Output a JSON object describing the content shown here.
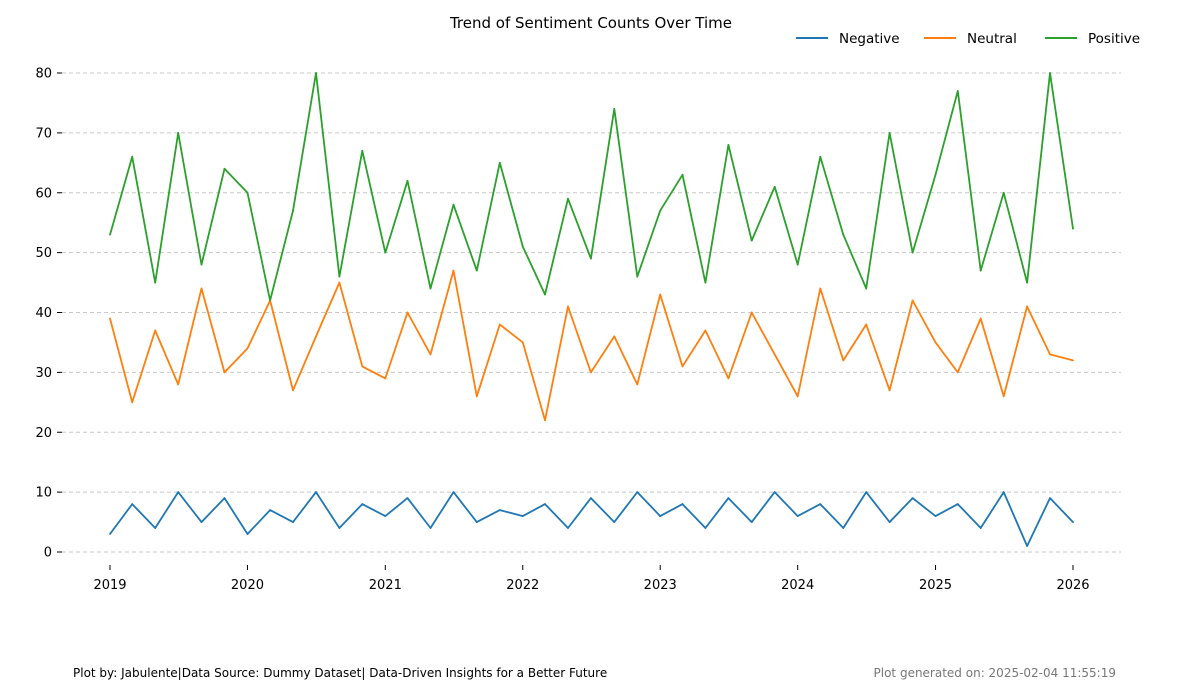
{
  "chart_data": {
    "type": "line",
    "title": "Trend of Sentiment Counts Over Time",
    "xlabel": "",
    "ylabel": "",
    "x_range": [
      "2019-01-01",
      "2026-01-01"
    ],
    "xticks": [
      "2019",
      "2020",
      "2021",
      "2022",
      "2023",
      "2024",
      "2025",
      "2026"
    ],
    "ylim": [
      0,
      80
    ],
    "yticks": [
      0,
      10,
      20,
      30,
      40,
      50,
      60,
      70,
      80
    ],
    "grid": "horizontal-dashed",
    "legend_position": "top-right",
    "series": [
      {
        "name": "Negative",
        "color": "#1f77b4",
        "x": [
          "2019-01-01",
          "2019-03-01",
          "2019-05-01",
          "2019-07-01",
          "2019-09-01",
          "2019-11-01",
          "2020-01-01",
          "2020-03-01",
          "2020-05-01",
          "2020-07-01",
          "2020-09-01",
          "2020-11-01",
          "2021-01-01",
          "2021-03-01",
          "2021-05-01",
          "2021-07-01",
          "2021-09-01",
          "2021-11-01",
          "2022-01-01",
          "2022-03-01",
          "2022-05-01",
          "2022-07-01",
          "2022-09-01",
          "2022-11-01",
          "2023-01-01",
          "2023-03-01",
          "2023-05-01",
          "2023-07-01",
          "2023-09-01",
          "2023-11-01",
          "2024-01-01",
          "2024-03-01",
          "2024-05-01",
          "2024-07-01",
          "2024-09-01",
          "2024-11-01",
          "2025-01-01",
          "2025-03-01",
          "2025-05-01",
          "2025-07-01",
          "2025-09-01",
          "2025-11-01",
          "2026-01-01"
        ],
        "values": [
          3,
          8,
          4,
          10,
          5,
          9,
          3,
          7,
          5,
          10,
          4,
          8,
          6,
          9,
          4,
          10,
          5,
          7,
          6,
          8,
          4,
          9,
          5,
          10,
          6,
          8,
          4,
          9,
          5,
          10,
          6,
          8,
          4,
          10,
          5,
          9,
          6,
          8,
          4,
          10,
          1,
          9,
          5
        ]
      },
      {
        "name": "Neutral",
        "color": "#ff7f0e",
        "x": [
          "2019-01-01",
          "2019-03-01",
          "2019-05-01",
          "2019-07-01",
          "2019-09-01",
          "2019-11-01",
          "2020-01-01",
          "2020-03-01",
          "2020-05-01",
          "2020-07-01",
          "2020-09-01",
          "2020-11-01",
          "2021-01-01",
          "2021-03-01",
          "2021-05-01",
          "2021-07-01",
          "2021-09-01",
          "2021-11-01",
          "2022-01-01",
          "2022-03-01",
          "2022-05-01",
          "2022-07-01",
          "2022-09-01",
          "2022-11-01",
          "2023-01-01",
          "2023-03-01",
          "2023-05-01",
          "2023-07-01",
          "2023-09-01",
          "2023-11-01",
          "2024-01-01",
          "2024-03-01",
          "2024-05-01",
          "2024-07-01",
          "2024-09-01",
          "2024-11-01",
          "2025-01-01",
          "2025-03-01",
          "2025-05-01",
          "2025-07-01",
          "2025-09-01",
          "2025-11-01",
          "2026-01-01"
        ],
        "values": [
          39,
          25,
          37,
          28,
          44,
          30,
          34,
          42,
          27,
          36,
          45,
          31,
          29,
          40,
          33,
          47,
          26,
          38,
          35,
          22,
          41,
          30,
          36,
          28,
          43,
          31,
          37,
          29,
          40,
          33,
          26,
          44,
          32,
          38,
          27,
          42,
          35,
          30,
          39,
          26,
          41,
          33,
          32
        ]
      },
      {
        "name": "Positive",
        "color": "#2ca02c",
        "x": [
          "2019-01-01",
          "2019-03-01",
          "2019-05-01",
          "2019-07-01",
          "2019-09-01",
          "2019-11-01",
          "2020-01-01",
          "2020-03-01",
          "2020-05-01",
          "2020-07-01",
          "2020-09-01",
          "2020-11-01",
          "2021-01-01",
          "2021-03-01",
          "2021-05-01",
          "2021-07-01",
          "2021-09-01",
          "2021-11-01",
          "2022-01-01",
          "2022-03-01",
          "2022-05-01",
          "2022-07-01",
          "2022-09-01",
          "2022-11-01",
          "2023-01-01",
          "2023-03-01",
          "2023-05-01",
          "2023-07-01",
          "2023-09-01",
          "2023-11-01",
          "2024-01-01",
          "2024-03-01",
          "2024-05-01",
          "2024-07-01",
          "2024-09-01",
          "2024-11-01",
          "2025-01-01",
          "2025-03-01",
          "2025-05-01",
          "2025-07-01",
          "2025-09-01",
          "2025-11-01",
          "2026-01-01"
        ],
        "values": [
          53,
          66,
          45,
          70,
          48,
          64,
          60,
          42,
          57,
          80,
          46,
          67,
          50,
          62,
          44,
          58,
          47,
          65,
          51,
          43,
          59,
          49,
          74,
          46,
          57,
          63,
          45,
          68,
          52,
          61,
          48,
          66,
          53,
          44,
          70,
          50,
          63,
          77,
          47,
          60,
          45,
          80,
          54
        ]
      }
    ]
  },
  "footer": {
    "credit": "Plot by: Jabulente|Data Source: Dummy Dataset| Data-Driven Insights for a Better Future",
    "generated": "Plot generated on: 2025-02-04 11:55:19"
  }
}
